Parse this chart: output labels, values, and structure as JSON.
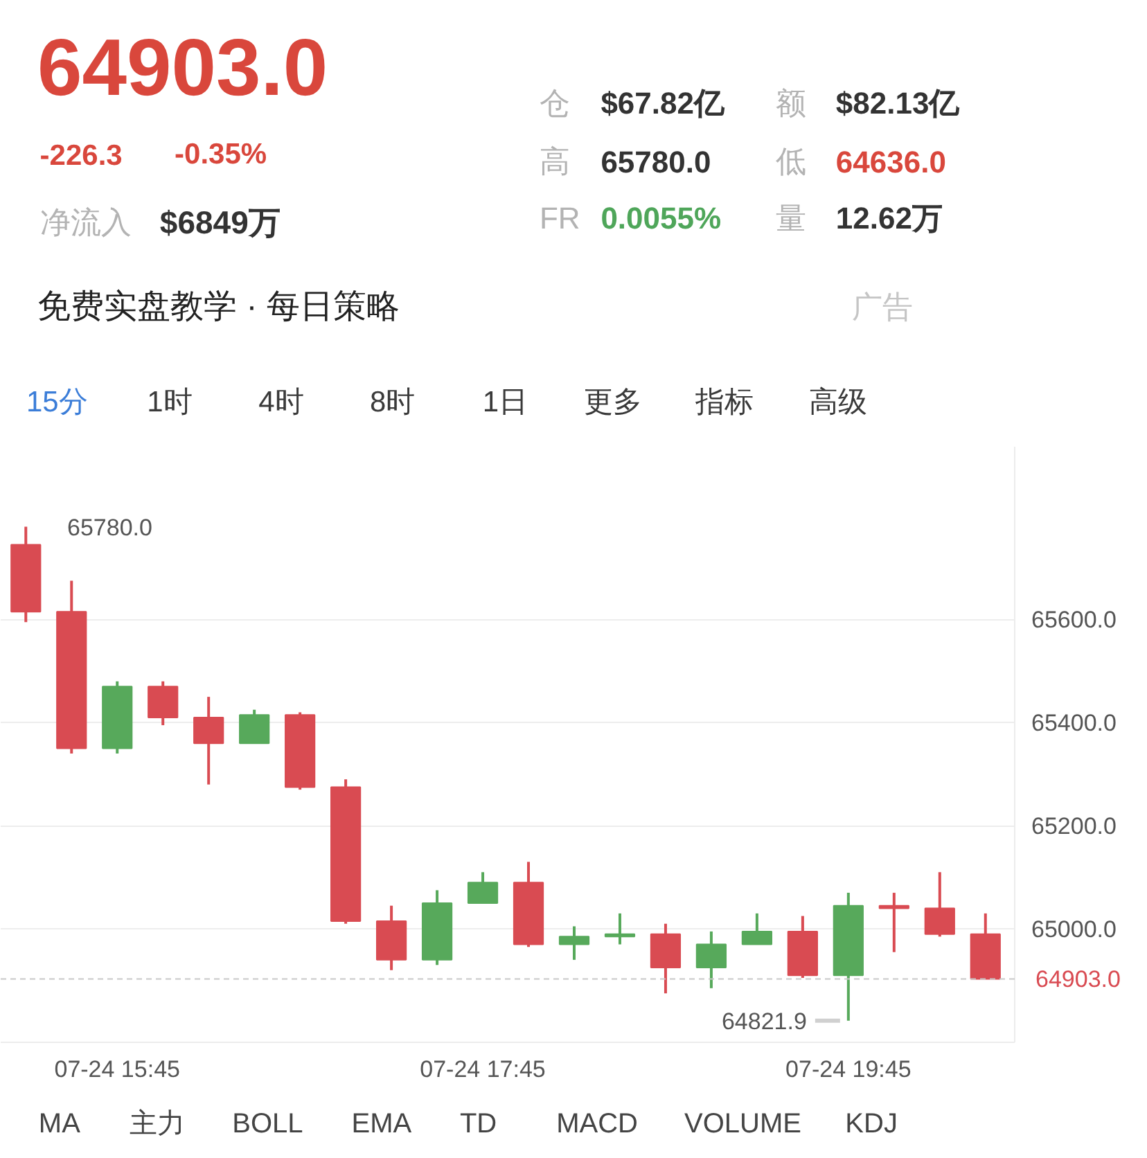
{
  "chart_data": {
    "type": "candlestick",
    "categories": [
      null,
      null,
      "07-24 15:45",
      null,
      null,
      null,
      null,
      null,
      null,
      null,
      "07-24 17:45",
      null,
      null,
      null,
      null,
      null,
      null,
      null,
      "07-24 19:45",
      null,
      null,
      null
    ],
    "ohlc": [
      [
        65745,
        65780,
        65595,
        65615
      ],
      [
        65615,
        65675,
        65340,
        65350
      ],
      [
        65350,
        65480,
        65340,
        65470
      ],
      [
        65470,
        65480,
        65395,
        65410
      ],
      [
        65410,
        65450,
        65280,
        65360
      ],
      [
        65360,
        65425,
        65360,
        65415
      ],
      [
        65415,
        65420,
        65270,
        65275
      ],
      [
        65275,
        65290,
        65010,
        65015
      ],
      [
        65015,
        65045,
        64920,
        64940
      ],
      [
        64940,
        65075,
        64930,
        65050
      ],
      [
        65050,
        65110,
        65050,
        65090
      ],
      [
        65090,
        65130,
        64965,
        64970
      ],
      [
        64970,
        65005,
        64940,
        64985
      ],
      [
        64985,
        65030,
        64970,
        64990
      ],
      [
        64990,
        65010,
        64875,
        64925
      ],
      [
        64925,
        64995,
        64885,
        64970
      ],
      [
        64970,
        65030,
        64970,
        64995
      ],
      [
        64995,
        65025,
        64905,
        64910
      ],
      [
        64910,
        65070,
        64821.9,
        65045
      ],
      [
        65045,
        65070,
        64955,
        65040
      ],
      [
        65040,
        65110,
        64985,
        64990
      ],
      [
        64990,
        65030,
        64903,
        64903
      ]
    ],
    "colors": [
      "#d94b52",
      "#d94b52",
      "#57a95b",
      "#d94b52",
      "#d94b52",
      "#57a95b",
      "#d94b52",
      "#d94b52",
      "#d94b52",
      "#57a95b",
      "#57a95b",
      "#d94b52",
      "#57a95b",
      "#57a95b",
      "#d94b52",
      "#57a95b",
      "#57a95b",
      "#d94b52",
      "#57a95b",
      "#d94b52",
      "#d94b52",
      "#d94b52"
    ],
    "ylim": [
      64780,
      65935
    ],
    "yticks": [
      {
        "value": 65000,
        "label": "65000.0"
      },
      {
        "value": 65200,
        "label": "65200.0"
      },
      {
        "value": 65400,
        "label": "65400.0"
      },
      {
        "value": 65600,
        "label": "65600.0"
      }
    ],
    "grid": "y",
    "ref_lines": [
      {
        "axis": "y",
        "value": 64903.0,
        "label": "64903.0",
        "color": "#c8c8c8",
        "line_style": "dashed"
      }
    ],
    "annotations": [
      "64903.0",
      "-226.3",
      "-0.35%",
      "净流入",
      "$6849万",
      "仓",
      "$67.82亿",
      "额",
      "$82.13亿",
      "高",
      "65780.0",
      "低",
      "64636.0",
      "FR",
      "0.0055%",
      "量",
      "12.62万",
      "免费实盘教学 · 每日策略",
      "广告",
      "15分",
      "1时",
      "4时",
      "8时",
      "1日",
      "更多",
      "指标",
      "高级",
      "MA",
      "主力",
      "BOLL",
      "EMA",
      "TD",
      "MACD",
      "VOLUME",
      "KDJ",
      "65780.0",
      {
        "text": "64821.9",
        "x": "07-24 19:45",
        "y": 64821.9
      }
    ]
  }
}
